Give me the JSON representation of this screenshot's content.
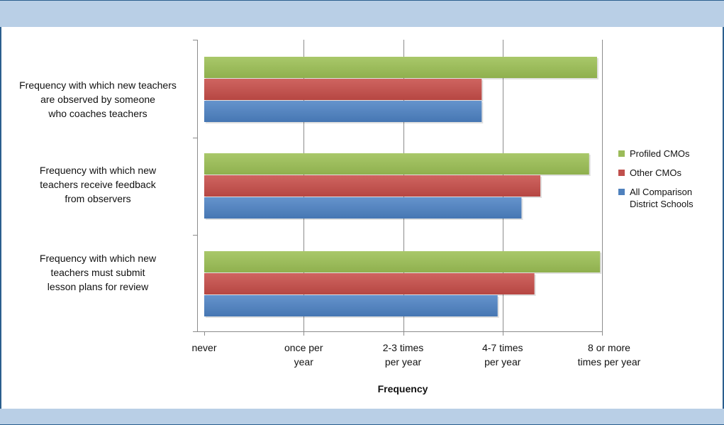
{
  "chart_data": {
    "type": "bar",
    "orientation": "horizontal",
    "title": "",
    "xlabel": "Frequency",
    "ylabel": "",
    "categories": [
      "Frequency with which new teachers are observed by someone who coaches teachers",
      "Frequency with which new teachers receive feedback from observers",
      "Frequency with which new teachers must submit lesson plans for review"
    ],
    "category_lines": [
      [
        "Frequency with which new teachers",
        "are observed by someone",
        "who coaches teachers"
      ],
      [
        "Frequency with which new",
        "teachers receive feedback",
        "from observers"
      ],
      [
        "Frequency with which new",
        "teachers must submit",
        "lesson plans for review"
      ]
    ],
    "x_ticks": [
      {
        "value": 0,
        "lines": [
          "never"
        ]
      },
      {
        "value": 1,
        "lines": [
          "once per",
          "year"
        ]
      },
      {
        "value": 2,
        "lines": [
          "2-3 times",
          "per year"
        ]
      },
      {
        "value": 3,
        "lines": [
          "4-7 times",
          "per year"
        ]
      },
      {
        "value": 4,
        "lines": [
          "8 or more",
          "times per year"
        ]
      }
    ],
    "xlim": [
      0,
      4
    ],
    "grid": "vertical",
    "legend_position": "right",
    "series": [
      {
        "name": "Profiled CMOs",
        "color": "#9bbb59",
        "values": [
          3.95,
          3.87,
          3.98
        ]
      },
      {
        "name": "Other CMOs",
        "color": "#c0504d",
        "values": [
          2.79,
          3.38,
          3.32
        ]
      },
      {
        "name": "All Comparison District Schools",
        "color": "#4f81bd",
        "values": [
          2.79,
          3.19,
          2.95
        ]
      }
    ],
    "legend_lines": [
      [
        "Profiled CMOs"
      ],
      [
        "Other CMOs"
      ],
      [
        "All Comparison",
        "District Schools"
      ]
    ]
  }
}
